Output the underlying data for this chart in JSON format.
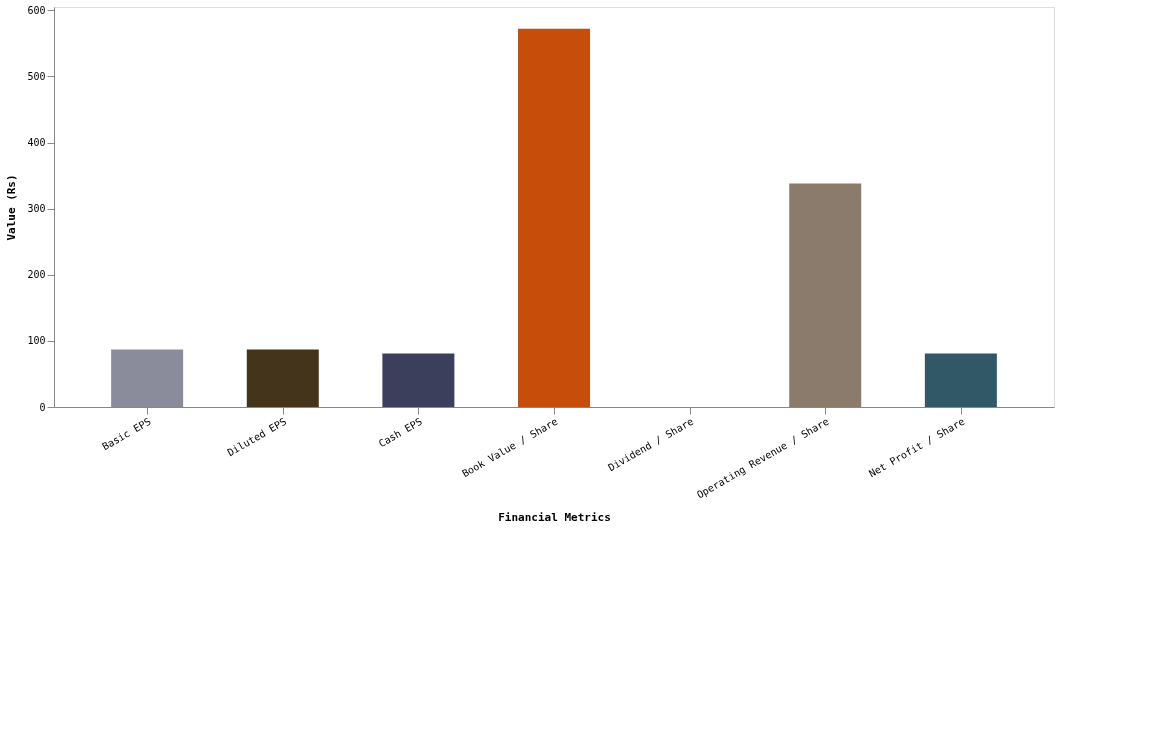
{
  "chart_data": {
    "type": "bar",
    "xlabel": "Financial Metrics",
    "ylabel": "Value (Rs)",
    "categories": [
      "Basic EPS",
      "Diluted EPS",
      "Cash EPS",
      "Book Value / Share",
      "Dividend / Share",
      "Operating Revenue / Share",
      "Net Profit / Share"
    ],
    "values": [
      87,
      87,
      81,
      572,
      0,
      338,
      81
    ],
    "colors": [
      "#8a8c9b",
      "#45341c",
      "#3c3f5c",
      "#c74d0b",
      "#2b5a6a",
      "#8a7b6d",
      "#305866"
    ],
    "ylim": [
      0,
      605
    ],
    "yticks": [
      0,
      100,
      200,
      300,
      400,
      500,
      600
    ],
    "grid": false
  }
}
